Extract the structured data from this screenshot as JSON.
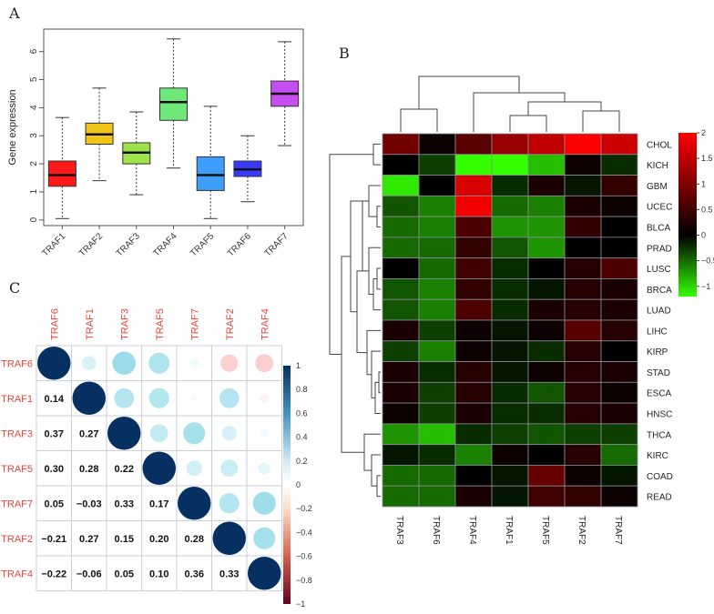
{
  "panels": {
    "a": "A",
    "b": "B",
    "c": "C"
  },
  "chart_data": [
    {
      "type": "box",
      "ylabel": "Gene expression",
      "ylim": [
        -0.2,
        6.8
      ],
      "yticks": [
        0,
        1,
        2,
        3,
        4,
        5,
        6
      ],
      "categories": [
        "TRAF1",
        "TRAF2",
        "TRAF3",
        "TRAF4",
        "TRAF5",
        "TRAF6",
        "TRAF7"
      ],
      "colors": [
        "#ff1a1a",
        "#f0c419",
        "#9fe34a",
        "#6fe87a",
        "#3f9dfc",
        "#3a3aff",
        "#c44ef0"
      ],
      "boxes": [
        {
          "min": 0.05,
          "q1": 1.2,
          "median": 1.6,
          "q3": 2.1,
          "max": 3.65
        },
        {
          "min": 1.4,
          "q1": 2.7,
          "median": 3.05,
          "q3": 3.45,
          "max": 4.7
        },
        {
          "min": 0.9,
          "q1": 2.0,
          "median": 2.4,
          "q3": 2.75,
          "max": 3.85
        },
        {
          "min": 1.85,
          "q1": 3.55,
          "median": 4.2,
          "q3": 4.7,
          "max": 6.45
        },
        {
          "min": 0.05,
          "q1": 1.05,
          "median": 1.6,
          "q3": 2.25,
          "max": 4.05
        },
        {
          "min": 0.65,
          "q1": 1.55,
          "median": 1.8,
          "q3": 2.1,
          "max": 3.0
        },
        {
          "min": 2.65,
          "q1": 4.05,
          "median": 4.5,
          "q3": 4.95,
          "max": 6.35
        }
      ]
    },
    {
      "type": "heatmap",
      "columns": [
        "TRAF3",
        "TRAF6",
        "TRAF4",
        "TRAF1",
        "TRAF5",
        "TRAF2",
        "TRAF7"
      ],
      "rows": [
        "CHOL",
        "KICH",
        "GBM",
        "UCEC",
        "BLCA",
        "PRAD",
        "LUSC",
        "BRCA",
        "LUAD",
        "LIHC",
        "KIRP",
        "STAD",
        "ESCA",
        "HNSC",
        "THCA",
        "KIRC",
        "COAD",
        "READ"
      ],
      "values": [
        [
          0.9,
          0.1,
          0.7,
          1.2,
          1.5,
          2.0,
          1.6
        ],
        [
          0.0,
          -0.3,
          -1.2,
          -1.2,
          -0.9,
          0.1,
          -0.2
        ],
        [
          -1.1,
          0.0,
          1.7,
          -0.2,
          0.2,
          -0.1,
          0.4
        ],
        [
          -0.4,
          -0.6,
          1.9,
          -0.5,
          -0.6,
          0.2,
          0.1
        ],
        [
          -0.5,
          -0.6,
          0.6,
          -0.7,
          -0.7,
          0.4,
          0.0
        ],
        [
          -0.5,
          -0.5,
          0.4,
          -0.4,
          -0.7,
          0.0,
          0.0
        ],
        [
          0.0,
          -0.5,
          0.5,
          -0.2,
          0.0,
          0.3,
          0.6
        ],
        [
          -0.4,
          -0.6,
          0.4,
          -0.2,
          -0.1,
          0.3,
          0.2
        ],
        [
          -0.4,
          -0.6,
          0.6,
          -0.2,
          0.2,
          0.3,
          0.2
        ],
        [
          0.2,
          -0.3,
          0.1,
          -0.1,
          0.1,
          0.7,
          0.3
        ],
        [
          -0.3,
          -0.6,
          0.1,
          -0.1,
          -0.2,
          0.3,
          0.0
        ],
        [
          0.2,
          -0.2,
          0.3,
          -0.1,
          0.1,
          0.3,
          0.2
        ],
        [
          0.2,
          -0.3,
          0.3,
          -0.2,
          -0.4,
          0.3,
          0.1
        ],
        [
          0.1,
          -0.3,
          0.2,
          -0.2,
          -0.2,
          0.3,
          0.2
        ],
        [
          -0.7,
          -0.9,
          -0.2,
          -0.3,
          -0.4,
          -0.3,
          -0.3
        ],
        [
          -0.1,
          -0.2,
          -0.6,
          0.1,
          0.0,
          0.3,
          -0.5
        ],
        [
          -0.5,
          -0.5,
          0.0,
          -0.1,
          0.8,
          0.1,
          -0.1
        ],
        [
          -0.5,
          -0.5,
          0.2,
          -0.1,
          0.5,
          0.4,
          0.1
        ]
      ],
      "colorbar": {
        "range": [
          -1.2,
          2.0
        ],
        "ticks": [
          "2",
          "1.5",
          "1",
          "0.5",
          "0",
          "−0.5",
          "−1"
        ],
        "tick_values": [
          2,
          1.5,
          1,
          0.5,
          0,
          -0.5,
          -1
        ],
        "low_color": "#33ff00",
        "mid_color": "#000000",
        "high_color": "#ff0000"
      }
    },
    {
      "type": "correlation_matrix",
      "labels": [
        "TRAF6",
        "TRAF1",
        "TRAF3",
        "TRAF5",
        "TRAF7",
        "TRAF2",
        "TRAF4"
      ],
      "lower_text": [
        [
          "0.14"
        ],
        [
          "0.37",
          "0.27"
        ],
        [
          "0.30",
          "0.28",
          "0.22"
        ],
        [
          "0.05",
          "−0.03",
          "0.33",
          "0.17"
        ],
        [
          "−0.21",
          "0.27",
          "0.15",
          "0.20",
          "0.28"
        ],
        [
          "−0.22",
          "−0.06",
          "0.05",
          "0.10",
          "0.36",
          "0.33"
        ]
      ],
      "matrix": [
        [
          1,
          0.14,
          0.37,
          0.3,
          0.05,
          -0.21,
          -0.22
        ],
        [
          0.14,
          1,
          0.27,
          0.28,
          -0.03,
          0.27,
          -0.06
        ],
        [
          0.37,
          0.27,
          1,
          0.22,
          0.33,
          0.15,
          0.05
        ],
        [
          0.3,
          0.28,
          0.22,
          1,
          0.17,
          0.2,
          0.1
        ],
        [
          0.05,
          -0.03,
          0.33,
          0.17,
          1,
          0.28,
          0.36
        ],
        [
          -0.21,
          0.27,
          0.15,
          0.2,
          0.28,
          1,
          0.33
        ],
        [
          -0.22,
          -0.06,
          0.05,
          0.1,
          0.36,
          0.33,
          1
        ]
      ],
      "colorbar": {
        "range": [
          -1,
          1
        ],
        "ticks": [
          "1",
          "0.8",
          "0.6",
          "0.4",
          "0.2",
          "0",
          "−0.2",
          "−0.4",
          "−0.6",
          "−0.8",
          "−1"
        ],
        "tick_values": [
          1,
          0.8,
          0.6,
          0.4,
          0.2,
          0,
          -0.2,
          -0.4,
          -0.6,
          -0.8,
          -1
        ]
      }
    }
  ]
}
